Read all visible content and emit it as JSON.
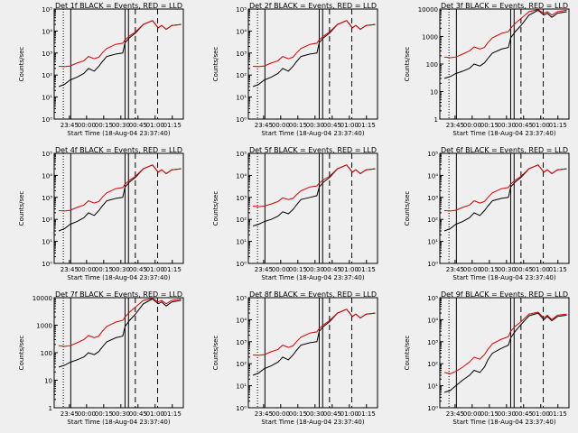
{
  "panel_titles": [
    "Det 1f BLACK = Events, RED = LLD",
    "Det 2f BLACK = Events, RED = LLD",
    "Det 3f BLACK = Events, RED = LLD",
    "Det 4f BLACK = Events, RED = LLD",
    "Det 5f BLACK = Events, RED = LLD",
    "Det 6f BLACK = Events, RED = LLD",
    "Det 7f BLACK = Events, RED = LLD",
    "Det 8f BLACK = Events, RED = LLD",
    "Det 9f BLACK = Events, RED = LLD"
  ],
  "shared": {
    "xlabel": "Start Time (18-Aug-04 23:37:40)",
    "ylabel": "Counts/sec",
    "x_ticks": [
      "23:45",
      "00:00",
      "00:15",
      "00:30",
      "00:45",
      "01:00",
      "01:15"
    ],
    "y_ticks_exp": [
      "10⁰",
      "10¹",
      "10²",
      "10³",
      "10⁴",
      "10⁵"
    ],
    "y_ticks_plain": [
      "1",
      "10",
      "100",
      "1000",
      "10000"
    ],
    "series_colors": {
      "events": "#000000",
      "lld": "#dd0000"
    }
  },
  "chart_data": [
    {
      "type": "line",
      "panel": "Det 1f",
      "yscale": "log",
      "ylim": [
        1,
        100000
      ],
      "xlim_minutes": [
        -6,
        107
      ],
      "y_ticks": "exp",
      "series": [
        {
          "color": "events",
          "x": [
            -2,
            3,
            8,
            14,
            20,
            24,
            29,
            33,
            36,
            40,
            48,
            54,
            56,
            60,
            65,
            72,
            80,
            85,
            88,
            92,
            97,
            105
          ],
          "y": [
            30,
            38,
            60,
            80,
            120,
            200,
            150,
            250,
            400,
            700,
            900,
            1000,
            3000,
            5000,
            8000,
            20000,
            30000,
            14000,
            18000,
            12000,
            18000,
            20000
          ]
        },
        {
          "color": "lld",
          "x": [
            -2,
            3,
            8,
            14,
            20,
            24,
            29,
            33,
            36,
            40,
            48,
            54,
            56,
            60,
            65,
            72,
            80,
            85,
            88,
            92,
            97,
            105
          ],
          "y": [
            250,
            240,
            260,
            350,
            450,
            700,
            550,
            650,
            1000,
            1600,
            2500,
            2800,
            4000,
            6000,
            9000,
            20000,
            30000,
            14000,
            18000,
            12000,
            18000,
            20000
          ]
        }
      ]
    },
    {
      "type": "line",
      "panel": "Det 2f",
      "yscale": "log",
      "ylim": [
        1,
        100000
      ],
      "xlim_minutes": [
        -6,
        107
      ],
      "y_ticks": "exp",
      "series": [
        {
          "color": "events",
          "x": [
            -2,
            3,
            8,
            14,
            20,
            24,
            29,
            33,
            36,
            40,
            48,
            54,
            56,
            60,
            65,
            72,
            80,
            85,
            88,
            92,
            97,
            105
          ],
          "y": [
            30,
            38,
            60,
            80,
            120,
            200,
            150,
            250,
            400,
            700,
            900,
            1000,
            3000,
            5000,
            8000,
            20000,
            30000,
            14000,
            18000,
            12000,
            18000,
            20000
          ]
        },
        {
          "color": "lld",
          "x": [
            -2,
            3,
            8,
            14,
            20,
            24,
            29,
            33,
            36,
            40,
            48,
            54,
            56,
            60,
            65,
            72,
            80,
            85,
            88,
            92,
            97,
            105
          ],
          "y": [
            250,
            240,
            260,
            350,
            450,
            700,
            550,
            650,
            1000,
            1600,
            2500,
            2800,
            4000,
            6000,
            9000,
            20000,
            30000,
            14000,
            18000,
            12000,
            18000,
            20000
          ]
        }
      ]
    },
    {
      "type": "line",
      "panel": "Det 3f",
      "yscale": "log",
      "ylim": [
        1,
        10000
      ],
      "xlim_minutes": [
        -6,
        107
      ],
      "y_ticks": "plain",
      "series": [
        {
          "color": "events",
          "x": [
            -2,
            3,
            8,
            14,
            20,
            24,
            29,
            33,
            36,
            40,
            48,
            54,
            56,
            60,
            65,
            72,
            80,
            85,
            88,
            92,
            97,
            105
          ],
          "y": [
            30,
            35,
            45,
            55,
            70,
            100,
            85,
            110,
            160,
            250,
            350,
            400,
            900,
            1500,
            2500,
            6000,
            9000,
            6000,
            7000,
            5000,
            7000,
            8000
          ]
        },
        {
          "color": "lld",
          "x": [
            -2,
            3,
            8,
            14,
            20,
            24,
            29,
            33,
            36,
            40,
            48,
            54,
            56,
            60,
            65,
            72,
            80,
            85,
            88,
            92,
            97,
            105
          ],
          "y": [
            180,
            170,
            180,
            230,
            300,
            420,
            350,
            400,
            600,
            900,
            1300,
            1500,
            2000,
            3000,
            4500,
            8000,
            9500,
            7000,
            8000,
            6000,
            8000,
            9000
          ]
        }
      ]
    },
    {
      "type": "line",
      "panel": "Det 4f",
      "yscale": "log",
      "ylim": [
        1,
        100000
      ],
      "xlim_minutes": [
        -6,
        107
      ],
      "y_ticks": "exp",
      "series": [
        {
          "color": "events",
          "x": [
            -2,
            3,
            8,
            14,
            20,
            24,
            29,
            33,
            36,
            40,
            48,
            54,
            56,
            60,
            65,
            72,
            80,
            85,
            88,
            92,
            97,
            105
          ],
          "y": [
            30,
            38,
            60,
            80,
            120,
            200,
            150,
            250,
            400,
            700,
            900,
            1000,
            3000,
            5000,
            8000,
            20000,
            30000,
            14000,
            18000,
            12000,
            18000,
            20000
          ]
        },
        {
          "color": "lld",
          "x": [
            -2,
            3,
            8,
            14,
            20,
            24,
            29,
            33,
            36,
            40,
            48,
            54,
            56,
            60,
            65,
            72,
            80,
            85,
            88,
            92,
            97,
            105
          ],
          "y": [
            250,
            240,
            260,
            350,
            450,
            700,
            550,
            650,
            1000,
            1600,
            2500,
            2800,
            4000,
            6000,
            9000,
            20000,
            30000,
            14000,
            18000,
            12000,
            18000,
            20000
          ]
        }
      ]
    },
    {
      "type": "line",
      "panel": "Det 5f",
      "yscale": "log",
      "ylim": [
        1,
        100000
      ],
      "xlim_minutes": [
        -6,
        107
      ],
      "y_ticks": "exp",
      "series": [
        {
          "color": "events",
          "x": [
            -2,
            3,
            8,
            14,
            20,
            24,
            29,
            33,
            36,
            40,
            48,
            54,
            56,
            60,
            65,
            72,
            80,
            85,
            88,
            92,
            97,
            105
          ],
          "y": [
            50,
            60,
            80,
            100,
            140,
            220,
            180,
            280,
            450,
            800,
            1000,
            1200,
            3000,
            5000,
            8000,
            20000,
            30000,
            14000,
            18000,
            12000,
            18000,
            20000
          ]
        },
        {
          "color": "lld",
          "x": [
            -2,
            3,
            8,
            14,
            20,
            24,
            29,
            33,
            36,
            40,
            48,
            54,
            56,
            60,
            65,
            72,
            80,
            85,
            88,
            92,
            97,
            105
          ],
          "y": [
            400,
            380,
            400,
            500,
            650,
            950,
            800,
            900,
            1300,
            2000,
            3000,
            3300,
            4500,
            6500,
            9000,
            20000,
            30000,
            14000,
            18000,
            12000,
            18000,
            20000
          ]
        }
      ]
    },
    {
      "type": "line",
      "panel": "Det 6f",
      "yscale": "log",
      "ylim": [
        1,
        100000
      ],
      "xlim_minutes": [
        -6,
        107
      ],
      "y_ticks": "exp",
      "series": [
        {
          "color": "events",
          "x": [
            -2,
            3,
            8,
            14,
            20,
            24,
            29,
            33,
            36,
            40,
            48,
            54,
            56,
            60,
            65,
            72,
            80,
            85,
            88,
            92,
            97,
            105
          ],
          "y": [
            30,
            38,
            60,
            80,
            120,
            200,
            150,
            250,
            400,
            700,
            900,
            1000,
            3000,
            5000,
            8000,
            20000,
            30000,
            14000,
            18000,
            12000,
            18000,
            20000
          ]
        },
        {
          "color": "lld",
          "x": [
            -2,
            3,
            8,
            14,
            20,
            24,
            29,
            33,
            36,
            40,
            48,
            54,
            56,
            60,
            65,
            72,
            80,
            85,
            88,
            92,
            97,
            105
          ],
          "y": [
            250,
            240,
            260,
            350,
            450,
            700,
            550,
            650,
            1000,
            1600,
            2500,
            2800,
            4000,
            6000,
            9000,
            20000,
            30000,
            14000,
            18000,
            12000,
            18000,
            20000
          ]
        }
      ]
    },
    {
      "type": "line",
      "panel": "Det 7f",
      "yscale": "log",
      "ylim": [
        1,
        10000
      ],
      "xlim_minutes": [
        -6,
        107
      ],
      "y_ticks": "plain",
      "series": [
        {
          "color": "events",
          "x": [
            -2,
            3,
            8,
            14,
            20,
            24,
            29,
            33,
            36,
            40,
            48,
            54,
            56,
            60,
            65,
            72,
            80,
            85,
            88,
            92,
            97,
            105
          ],
          "y": [
            30,
            35,
            45,
            55,
            70,
            100,
            85,
            110,
            160,
            250,
            350,
            400,
            900,
            1500,
            2500,
            6000,
            9000,
            6000,
            7000,
            5000,
            7000,
            8000
          ]
        },
        {
          "color": "lld",
          "x": [
            -2,
            3,
            8,
            14,
            20,
            24,
            29,
            33,
            36,
            40,
            48,
            54,
            56,
            60,
            65,
            72,
            80,
            85,
            88,
            92,
            97,
            105
          ],
          "y": [
            180,
            170,
            180,
            230,
            300,
            420,
            350,
            400,
            600,
            900,
            1300,
            1500,
            2000,
            3000,
            4500,
            8000,
            9500,
            7000,
            8000,
            6000,
            8000,
            9000
          ]
        }
      ]
    },
    {
      "type": "line",
      "panel": "Det 8f",
      "yscale": "log",
      "ylim": [
        1,
        100000
      ],
      "xlim_minutes": [
        -6,
        107
      ],
      "y_ticks": "exp",
      "series": [
        {
          "color": "events",
          "x": [
            -2,
            3,
            8,
            14,
            20,
            24,
            29,
            33,
            36,
            40,
            48,
            54,
            56,
            60,
            65,
            72,
            80,
            85,
            88,
            92,
            97,
            105
          ],
          "y": [
            30,
            38,
            60,
            80,
            120,
            200,
            150,
            250,
            400,
            700,
            900,
            1000,
            3000,
            5000,
            8000,
            20000,
            30000,
            14000,
            18000,
            12000,
            18000,
            20000
          ]
        },
        {
          "color": "lld",
          "x": [
            -2,
            3,
            8,
            14,
            20,
            24,
            29,
            33,
            36,
            40,
            48,
            54,
            56,
            60,
            65,
            72,
            80,
            85,
            88,
            92,
            97,
            105
          ],
          "y": [
            250,
            240,
            260,
            350,
            450,
            700,
            550,
            650,
            1000,
            1600,
            2500,
            2800,
            4000,
            6000,
            9000,
            20000,
            30000,
            14000,
            18000,
            12000,
            18000,
            20000
          ]
        }
      ]
    },
    {
      "type": "line",
      "panel": "Det 9f",
      "yscale": "log",
      "ylim": [
        1,
        100000
      ],
      "xlim_minutes": [
        -6,
        107
      ],
      "y_ticks": "exp",
      "series": [
        {
          "color": "events",
          "x": [
            -2,
            3,
            8,
            14,
            20,
            24,
            29,
            33,
            36,
            40,
            48,
            54,
            56,
            60,
            65,
            72,
            80,
            85,
            88,
            92,
            97,
            105
          ],
          "y": [
            5,
            6,
            10,
            18,
            30,
            50,
            40,
            70,
            150,
            300,
            500,
            700,
            1500,
            3000,
            6000,
            15000,
            20000,
            10000,
            14000,
            9000,
            14000,
            16000
          ]
        },
        {
          "color": "lld",
          "x": [
            -2,
            3,
            8,
            14,
            20,
            24,
            29,
            33,
            36,
            40,
            48,
            54,
            56,
            60,
            65,
            72,
            80,
            85,
            88,
            92,
            97,
            105
          ],
          "y": [
            40,
            35,
            45,
            70,
            120,
            200,
            160,
            260,
            450,
            800,
            1300,
            1700,
            3000,
            5000,
            8000,
            18000,
            22000,
            12000,
            16000,
            10000,
            16000,
            18000
          ]
        }
      ]
    }
  ]
}
